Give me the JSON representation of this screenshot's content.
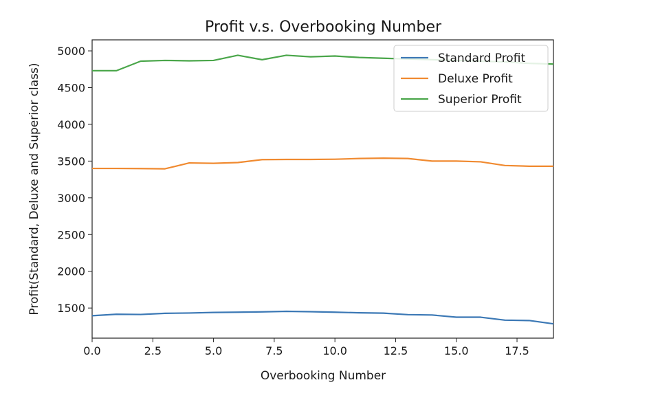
{
  "chart_data": {
    "type": "line",
    "title": "Profit v.s. Overbooking Number",
    "xlabel": "Overbooking Number",
    "ylabel": "Profit(Standard, Deluxe and Superior class)",
    "xlim": [
      0,
      19
    ],
    "ylim": [
      1090,
      5150
    ],
    "xticks": [
      0.0,
      2.5,
      5.0,
      7.5,
      10.0,
      12.5,
      15.0,
      17.5
    ],
    "xtick_labels": [
      "0.0",
      "2.5",
      "5.0",
      "7.5",
      "10.0",
      "12.5",
      "15.0",
      "17.5"
    ],
    "yticks": [
      1500,
      2000,
      2500,
      3000,
      3500,
      4000,
      4500,
      5000
    ],
    "ytick_labels": [
      "1500",
      "2000",
      "2500",
      "3000",
      "3500",
      "4000",
      "4500",
      "5000"
    ],
    "grid": false,
    "legend_position": "top-right",
    "x": [
      0,
      1,
      2,
      3,
      4,
      5,
      6,
      7,
      8,
      9,
      10,
      11,
      12,
      13,
      14,
      15,
      16,
      17,
      18,
      19
    ],
    "series": [
      {
        "name": "Standard Profit",
        "color": "#3b78b5",
        "values": [
          1395,
          1415,
          1412,
          1428,
          1432,
          1440,
          1443,
          1448,
          1455,
          1450,
          1443,
          1435,
          1430,
          1410,
          1405,
          1375,
          1375,
          1335,
          1330,
          1285
        ]
      },
      {
        "name": "Deluxe Profit",
        "color": "#f08a30",
        "values": [
          3400,
          3400,
          3398,
          3395,
          3475,
          3470,
          3480,
          3520,
          3522,
          3522,
          3525,
          3535,
          3540,
          3535,
          3500,
          3500,
          3490,
          3440,
          3430,
          3430
        ]
      },
      {
        "name": "Superior Profit",
        "color": "#4aa64a",
        "values": [
          4730,
          4730,
          4860,
          4870,
          4865,
          4870,
          4940,
          4880,
          4940,
          4920,
          4930,
          4910,
          4900,
          4890,
          4880,
          4870,
          4860,
          4850,
          4830,
          4820
        ]
      }
    ]
  }
}
